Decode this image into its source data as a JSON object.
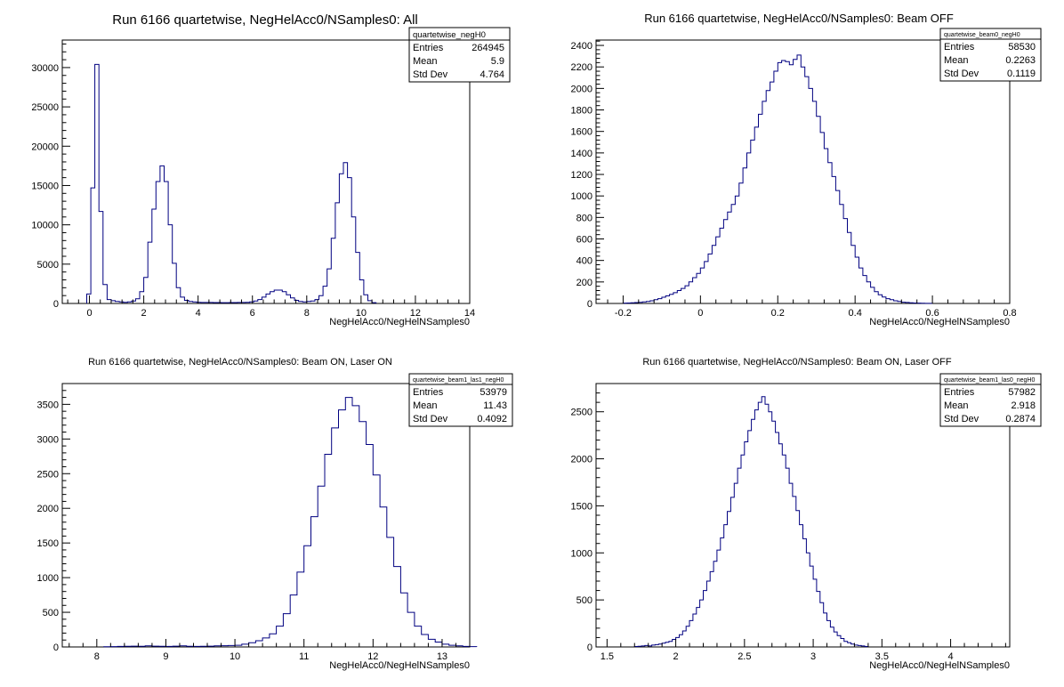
{
  "canvas": {
    "background": "#ffffff",
    "line_color": "#000080"
  },
  "chart_data": [
    {
      "type": "bar",
      "title": "Run 6166 quartetwise, NegHelAcc0/NSamples0: All",
      "xlabel": "NegHelAcc0/NegHelNSamples0",
      "ylabel": "",
      "xlim": [
        -1,
        14
      ],
      "ylim": [
        0,
        33500
      ],
      "xticks": [
        0,
        2,
        4,
        6,
        8,
        10,
        12,
        14
      ],
      "yticks": [
        0,
        5000,
        10000,
        15000,
        20000,
        25000,
        30000
      ],
      "bin_start": -0.1,
      "bin_width": 0.15,
      "values": [
        1200,
        14700,
        30400,
        11700,
        2400,
        500,
        350,
        250,
        200,
        150,
        200,
        300,
        600,
        1500,
        3300,
        7800,
        12000,
        15500,
        17500,
        15500,
        10000,
        5100,
        2000,
        800,
        400,
        250,
        200,
        150,
        130,
        130,
        120,
        110,
        110,
        100,
        100,
        110,
        110,
        120,
        130,
        150,
        200,
        300,
        500,
        800,
        1200,
        1500,
        1700,
        1700,
        1500,
        1100,
        700,
        400,
        250,
        200,
        250,
        300,
        500,
        1000,
        2200,
        4400,
        8300,
        12800,
        16500,
        17900,
        16000,
        11000,
        6500,
        3000,
        1100,
        350,
        100
      ],
      "stats": {
        "name": "quartetwise_negH0",
        "rows": [
          [
            "Entries",
            "264945"
          ],
          [
            "Mean",
            "5.9"
          ],
          [
            "Std Dev",
            "4.764"
          ]
        ]
      }
    },
    {
      "type": "bar",
      "title": "Run 6166 quartetwise, NegHelAcc0/NSamples0: Beam OFF",
      "xlabel": "NegHelAcc0/NegHelNSamples0",
      "ylabel": "",
      "xlim": [
        -0.27,
        0.8
      ],
      "ylim": [
        0,
        2450
      ],
      "xticks": [
        -0.2,
        0,
        0.2,
        0.4,
        0.6,
        0.8
      ],
      "yticks": [
        0,
        200,
        400,
        600,
        800,
        1000,
        1200,
        1400,
        1600,
        1800,
        2000,
        2200,
        2400
      ],
      "bin_start": -0.2,
      "bin_width": 0.01,
      "values": [
        3,
        4,
        6,
        8,
        10,
        14,
        19,
        25,
        35,
        45,
        58,
        70,
        85,
        100,
        120,
        140,
        165,
        200,
        240,
        280,
        330,
        390,
        460,
        540,
        620,
        700,
        780,
        850,
        920,
        1000,
        1120,
        1260,
        1400,
        1520,
        1640,
        1760,
        1880,
        1980,
        2060,
        2160,
        2240,
        2260,
        2250,
        2220,
        2270,
        2310,
        2200,
        2110,
        2000,
        1880,
        1740,
        1590,
        1440,
        1310,
        1180,
        1050,
        920,
        790,
        660,
        540,
        430,
        330,
        260,
        200,
        150,
        110,
        80,
        60,
        45,
        35,
        25,
        18,
        12,
        9,
        6,
        4,
        3,
        2,
        1,
        1
      ],
      "stats": {
        "name": "quartetwise_beam0_negH0",
        "rows": [
          [
            "Entries",
            "58530"
          ],
          [
            "Mean",
            "0.2263"
          ],
          [
            "Std Dev",
            "0.1119"
          ]
        ]
      }
    },
    {
      "type": "bar",
      "title": "Run 6166 quartetwise, NegHelAcc0/NSamples0: Beam ON, Laser ON",
      "xlabel": "NegHelAcc0/NegHelNSamples0",
      "ylabel": "",
      "xlim": [
        7.5,
        13.4
      ],
      "ylim": [
        0,
        3800
      ],
      "xticks": [
        8,
        9,
        10,
        11,
        12,
        13
      ],
      "yticks": [
        0,
        500,
        1000,
        1500,
        2000,
        2500,
        3000,
        3500
      ],
      "bin_start": 8.1,
      "bin_width": 0.1,
      "values": [
        3,
        5,
        8,
        10,
        12,
        10,
        15,
        12,
        10,
        8,
        12,
        15,
        10,
        8,
        10,
        12,
        15,
        18,
        20,
        25,
        40,
        60,
        90,
        130,
        190,
        300,
        480,
        750,
        1080,
        1460,
        1880,
        2320,
        2780,
        3160,
        3420,
        3600,
        3480,
        3250,
        2920,
        2480,
        2020,
        1580,
        1160,
        780,
        500,
        300,
        180,
        110,
        70,
        40,
        25,
        15,
        8,
        5
      ],
      "stats": {
        "name": "quartetwise_beam1_las1_negH0",
        "rows": [
          [
            "Entries",
            "53979"
          ],
          [
            "Mean",
            "11.43"
          ],
          [
            "Std Dev",
            "0.4092"
          ]
        ]
      }
    },
    {
      "type": "bar",
      "title": "Run 6166 quartetwise, NegHelAcc0/NSamples0: Beam ON, Laser OFF",
      "xlabel": "NegHelAcc0/NegHelNSamples0",
      "ylabel": "",
      "xlim": [
        1.42,
        4.43
      ],
      "ylim": [
        0,
        2800
      ],
      "xticks": [
        1.5,
        2,
        2.5,
        3,
        3.5,
        4
      ],
      "yticks": [
        0,
        500,
        1000,
        1500,
        2000,
        2500
      ],
      "bin_start": 1.7,
      "bin_width": 0.025,
      "values": [
        5,
        8,
        10,
        15,
        10,
        20,
        25,
        30,
        40,
        50,
        60,
        80,
        100,
        130,
        170,
        220,
        280,
        350,
        420,
        500,
        600,
        700,
        800,
        910,
        1030,
        1160,
        1300,
        1440,
        1590,
        1740,
        1900,
        2040,
        2180,
        2300,
        2420,
        2520,
        2600,
        2660,
        2580,
        2500,
        2400,
        2280,
        2160,
        2040,
        1900,
        1740,
        1600,
        1450,
        1300,
        1150,
        1000,
        860,
        720,
        590,
        470,
        360,
        280,
        210,
        160,
        120,
        90,
        60,
        45,
        30,
        20,
        15,
        10,
        5
      ],
      "stats": {
        "name": "quartetwise_beam1_las0_negH0",
        "rows": [
          [
            "Entries",
            "57982"
          ],
          [
            "Mean",
            "2.918"
          ],
          [
            "Std Dev",
            "0.2874"
          ]
        ]
      }
    }
  ]
}
